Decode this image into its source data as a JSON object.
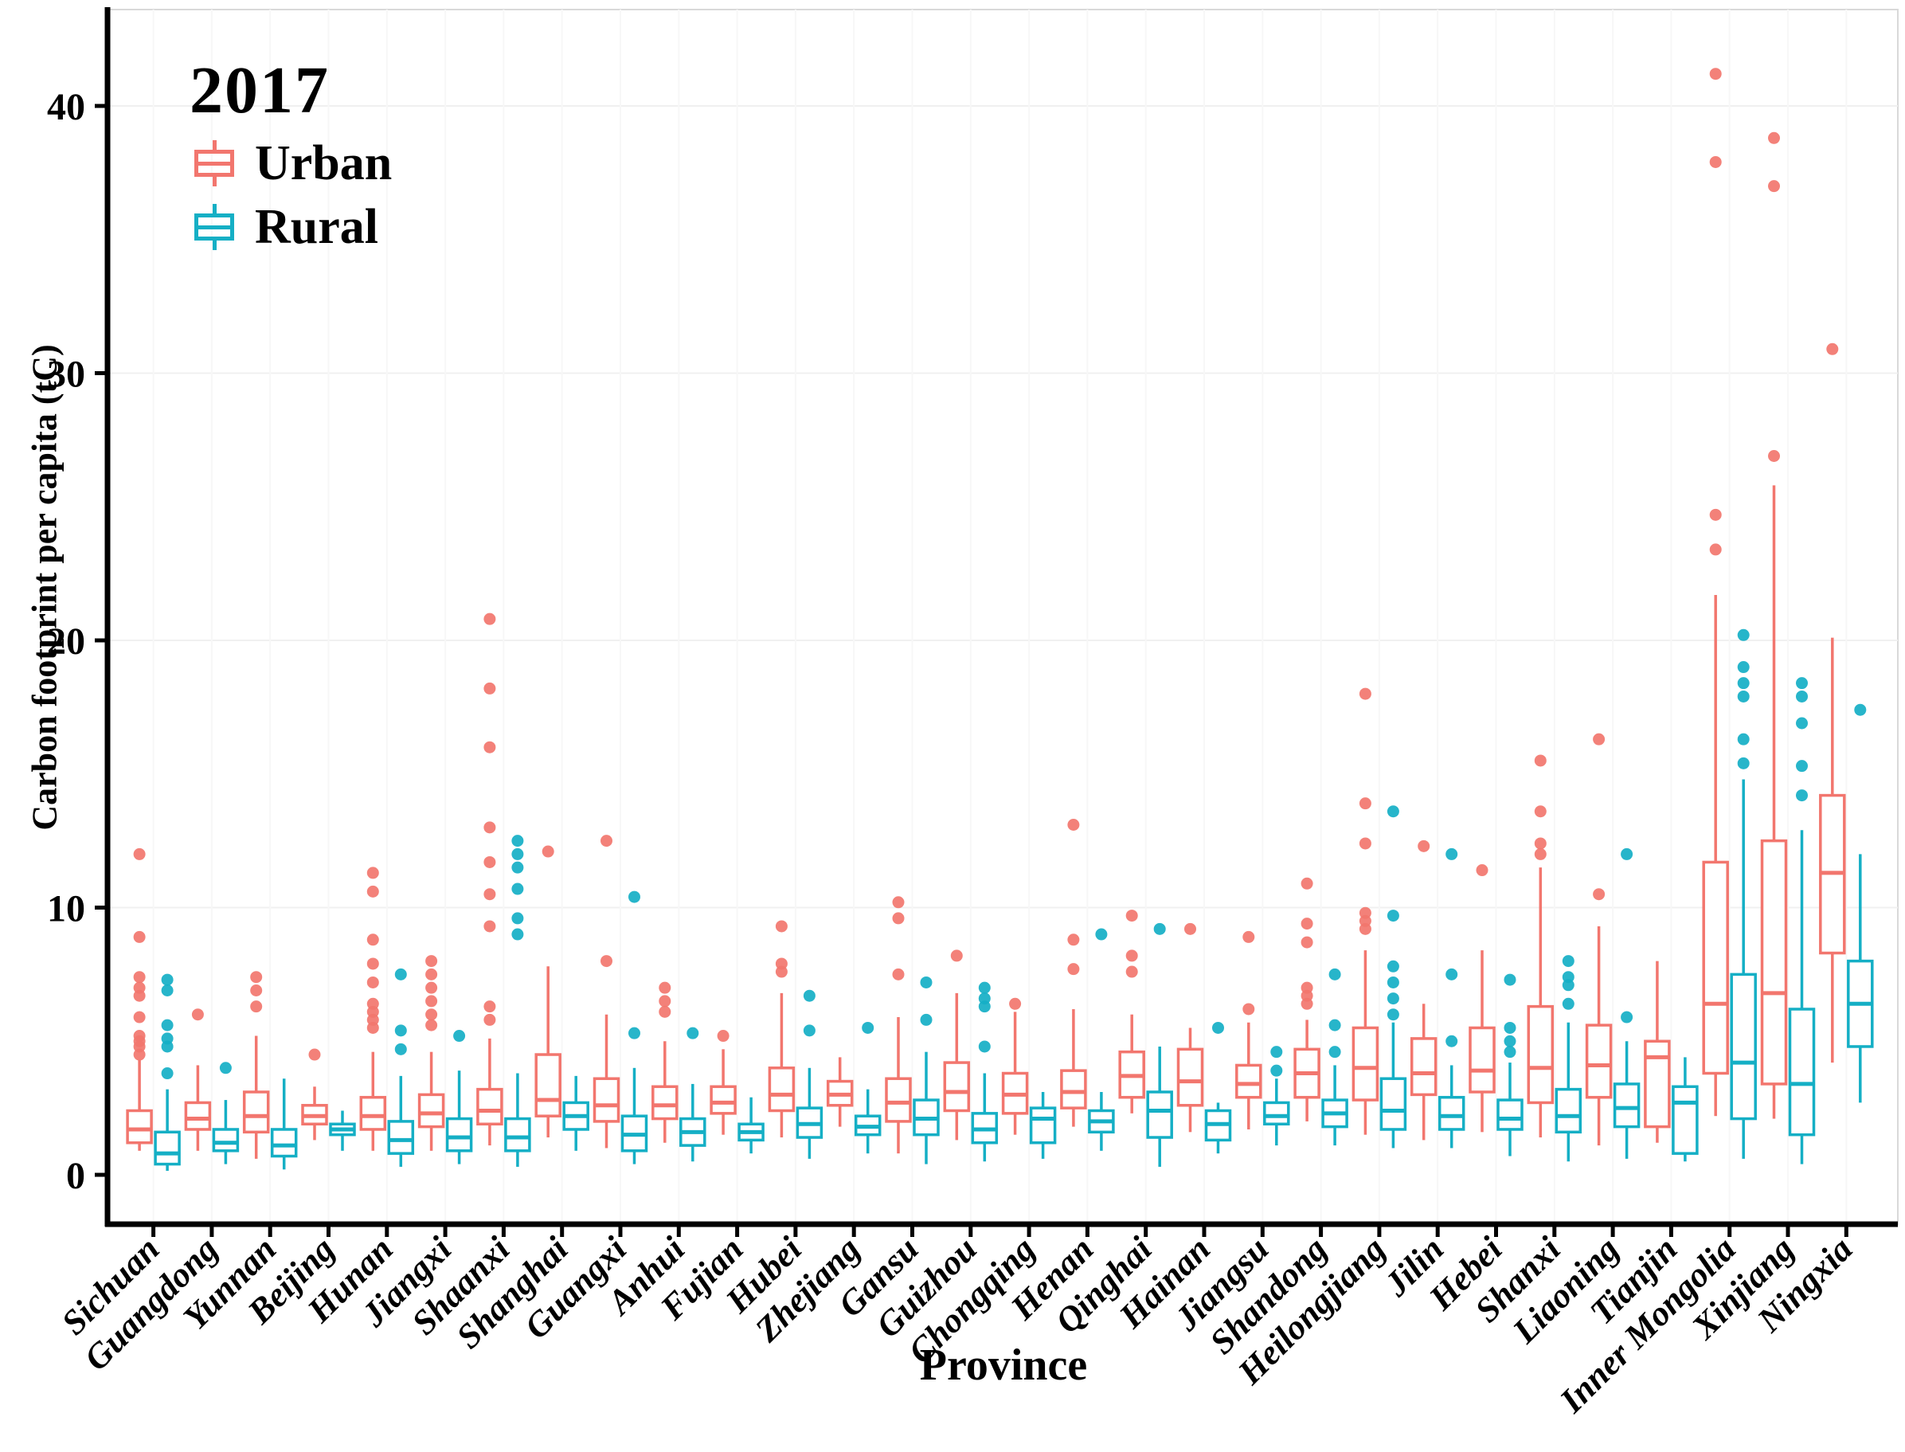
{
  "figure": {
    "legend_title": "2017",
    "y_axis_title": "Carbon footprint per capita  (tC)",
    "x_axis_title": "Province"
  },
  "chart_data": {
    "type": "grouped_boxplot",
    "title": "2017",
    "xlabel": "Province",
    "ylabel": "Carbon footprint per capita  (tC)",
    "ylim": [
      0,
      43
    ],
    "yticks": [
      0,
      10,
      20,
      30,
      40
    ],
    "grid": "very faint horizontal and vertical gridlines, white panel, black left/bottom axes",
    "legend_position": "top-left inside plot",
    "series": [
      {
        "name": "Urban",
        "color": "#F2766E"
      },
      {
        "name": "Rural",
        "color": "#15AFC5"
      }
    ],
    "categories": [
      "Sichuan",
      "Guangdong",
      "Yunnan",
      "Beijing",
      "Hunan",
      "Jiangxi",
      "Shaanxi",
      "Shanghai",
      "Guangxi",
      "Anhui",
      "Fujian",
      "Hubei",
      "Zhejiang",
      "Gansu",
      "Guizhou",
      "Chongqing",
      "Henan",
      "Qinghai",
      "Hainan",
      "Jiangsu",
      "Shandong",
      "Heilongjiang",
      "Jilin",
      "Hebei",
      "Shanxi",
      "Liaoning",
      "Tianjin",
      "Inner Mongolia",
      "Xinjiang",
      "Ningxia"
    ],
    "provinces": [
      {
        "name": "Sichuan",
        "urban": {
          "whislo": 0.9,
          "q1": 1.2,
          "med": 1.7,
          "q3": 2.4,
          "whishi": 4.3,
          "fliers": [
            4.5,
            4.8,
            5.0,
            5.2,
            5.9,
            6.7,
            7.0,
            7.4,
            8.9,
            12.0
          ]
        },
        "rural": {
          "whislo": 0.15,
          "q1": 0.4,
          "med": 0.8,
          "q3": 1.6,
          "whishi": 3.2,
          "fliers": [
            3.8,
            4.8,
            5.1,
            5.6,
            6.9,
            7.3
          ]
        }
      },
      {
        "name": "Guangdong",
        "urban": {
          "whislo": 0.9,
          "q1": 1.7,
          "med": 2.1,
          "q3": 2.7,
          "whishi": 4.1,
          "fliers": [
            6.0
          ]
        },
        "rural": {
          "whislo": 0.4,
          "q1": 0.9,
          "med": 1.2,
          "q3": 1.7,
          "whishi": 2.8,
          "fliers": [
            4.0
          ]
        }
      },
      {
        "name": "Yunnan",
        "urban": {
          "whislo": 0.6,
          "q1": 1.6,
          "med": 2.2,
          "q3": 3.1,
          "whishi": 5.2,
          "fliers": [
            6.3,
            6.9,
            7.4
          ]
        },
        "rural": {
          "whislo": 0.2,
          "q1": 0.7,
          "med": 1.1,
          "q3": 1.7,
          "whishi": 3.6,
          "fliers": []
        }
      },
      {
        "name": "Beijing",
        "urban": {
          "whislo": 1.3,
          "q1": 1.9,
          "med": 2.2,
          "q3": 2.6,
          "whishi": 3.3,
          "fliers": [
            4.5
          ]
        },
        "rural": {
          "whislo": 0.9,
          "q1": 1.5,
          "med": 1.7,
          "q3": 1.9,
          "whishi": 2.4,
          "fliers": []
        }
      },
      {
        "name": "Hunan",
        "urban": {
          "whislo": 0.9,
          "q1": 1.7,
          "med": 2.2,
          "q3": 2.9,
          "whishi": 4.6,
          "fliers": [
            5.5,
            5.8,
            6.1,
            6.4,
            7.2,
            7.9,
            8.8,
            10.6,
            11.3
          ]
        },
        "rural": {
          "whislo": 0.3,
          "q1": 0.8,
          "med": 1.3,
          "q3": 2.0,
          "whishi": 3.7,
          "fliers": [
            4.7,
            5.4,
            7.5
          ]
        }
      },
      {
        "name": "Jiangxi",
        "urban": {
          "whislo": 0.9,
          "q1": 1.8,
          "med": 2.3,
          "q3": 3.0,
          "whishi": 4.6,
          "fliers": [
            5.6,
            6.0,
            6.5,
            7.0,
            7.5,
            8.0
          ]
        },
        "rural": {
          "whislo": 0.4,
          "q1": 0.9,
          "med": 1.4,
          "q3": 2.1,
          "whishi": 3.9,
          "fliers": [
            5.2
          ]
        }
      },
      {
        "name": "Shaanxi",
        "urban": {
          "whislo": 1.1,
          "q1": 1.9,
          "med": 2.4,
          "q3": 3.2,
          "whishi": 5.1,
          "fliers": [
            5.8,
            6.3,
            9.3,
            10.5,
            11.7,
            13.0,
            16.0,
            18.2,
            20.8
          ]
        },
        "rural": {
          "whislo": 0.3,
          "q1": 0.9,
          "med": 1.4,
          "q3": 2.1,
          "whishi": 3.8,
          "fliers": [
            9.0,
            9.6,
            10.7,
            11.5,
            12.0,
            12.5
          ]
        }
      },
      {
        "name": "Shanghai",
        "urban": {
          "whislo": 1.4,
          "q1": 2.2,
          "med": 2.8,
          "q3": 4.5,
          "whishi": 7.8,
          "fliers": [
            12.1
          ]
        },
        "rural": {
          "whislo": 0.9,
          "q1": 1.7,
          "med": 2.2,
          "q3": 2.7,
          "whishi": 3.7,
          "fliers": []
        }
      },
      {
        "name": "Guangxi",
        "urban": {
          "whislo": 1.0,
          "q1": 2.0,
          "med": 2.6,
          "q3": 3.6,
          "whishi": 6.0,
          "fliers": [
            8.0,
            12.5
          ]
        },
        "rural": {
          "whislo": 0.4,
          "q1": 0.9,
          "med": 1.5,
          "q3": 2.2,
          "whishi": 4.0,
          "fliers": [
            5.3,
            10.4
          ]
        }
      },
      {
        "name": "Anhui",
        "urban": {
          "whislo": 1.2,
          "q1": 2.1,
          "med": 2.6,
          "q3": 3.3,
          "whishi": 5.0,
          "fliers": [
            6.1,
            6.5,
            7.0
          ]
        },
        "rural": {
          "whislo": 0.5,
          "q1": 1.1,
          "med": 1.6,
          "q3": 2.1,
          "whishi": 3.4,
          "fliers": [
            5.3
          ]
        }
      },
      {
        "name": "Fujian",
        "urban": {
          "whislo": 1.5,
          "q1": 2.3,
          "med": 2.7,
          "q3": 3.3,
          "whishi": 4.7,
          "fliers": [
            5.2
          ]
        },
        "rural": {
          "whislo": 0.8,
          "q1": 1.3,
          "med": 1.6,
          "q3": 1.9,
          "whishi": 2.9,
          "fliers": []
        }
      },
      {
        "name": "Hubei",
        "urban": {
          "whislo": 1.4,
          "q1": 2.4,
          "med": 3.0,
          "q3": 4.0,
          "whishi": 6.8,
          "fliers": [
            7.6,
            7.9,
            9.3
          ]
        },
        "rural": {
          "whislo": 0.6,
          "q1": 1.4,
          "med": 1.9,
          "q3": 2.5,
          "whishi": 4.0,
          "fliers": [
            5.4,
            6.7
          ]
        }
      },
      {
        "name": "Zhejiang",
        "urban": {
          "whislo": 1.8,
          "q1": 2.6,
          "med": 3.0,
          "q3": 3.5,
          "whishi": 4.4,
          "fliers": []
        },
        "rural": {
          "whislo": 0.8,
          "q1": 1.5,
          "med": 1.8,
          "q3": 2.2,
          "whishi": 3.2,
          "fliers": [
            5.5
          ]
        }
      },
      {
        "name": "Gansu",
        "urban": {
          "whislo": 0.8,
          "q1": 2.0,
          "med": 2.7,
          "q3": 3.6,
          "whishi": 5.9,
          "fliers": [
            7.5,
            9.6,
            10.2
          ]
        },
        "rural": {
          "whislo": 0.4,
          "q1": 1.5,
          "med": 2.1,
          "q3": 2.8,
          "whishi": 4.6,
          "fliers": [
            5.8,
            7.2
          ]
        }
      },
      {
        "name": "Guizhou",
        "urban": {
          "whislo": 1.3,
          "q1": 2.4,
          "med": 3.1,
          "q3": 4.2,
          "whishi": 6.8,
          "fliers": [
            8.2
          ]
        },
        "rural": {
          "whislo": 0.5,
          "q1": 1.2,
          "med": 1.7,
          "q3": 2.3,
          "whishi": 3.8,
          "fliers": [
            4.8,
            6.3,
            6.6,
            7.0
          ]
        }
      },
      {
        "name": "Chongqing",
        "urban": {
          "whislo": 1.5,
          "q1": 2.3,
          "med": 3.0,
          "q3": 3.8,
          "whishi": 6.1,
          "fliers": [
            6.4
          ]
        },
        "rural": {
          "whislo": 0.6,
          "q1": 1.2,
          "med": 2.1,
          "q3": 2.5,
          "whishi": 3.1,
          "fliers": []
        }
      },
      {
        "name": "Henan",
        "urban": {
          "whislo": 1.8,
          "q1": 2.5,
          "med": 3.1,
          "q3": 3.9,
          "whishi": 6.2,
          "fliers": [
            7.7,
            8.8,
            13.1
          ]
        },
        "rural": {
          "whislo": 0.9,
          "q1": 1.6,
          "med": 2.0,
          "q3": 2.4,
          "whishi": 3.1,
          "fliers": [
            9.0
          ]
        }
      },
      {
        "name": "Qinghai",
        "urban": {
          "whislo": 2.3,
          "q1": 2.9,
          "med": 3.7,
          "q3": 4.6,
          "whishi": 6.0,
          "fliers": [
            7.6,
            8.2,
            9.7
          ]
        },
        "rural": {
          "whislo": 0.3,
          "q1": 1.4,
          "med": 2.4,
          "q3": 3.1,
          "whishi": 4.8,
          "fliers": [
            9.2
          ]
        }
      },
      {
        "name": "Hainan",
        "urban": {
          "whislo": 1.6,
          "q1": 2.6,
          "med": 3.5,
          "q3": 4.7,
          "whishi": 5.5,
          "fliers": [
            9.2
          ]
        },
        "rural": {
          "whislo": 0.8,
          "q1": 1.3,
          "med": 1.9,
          "q3": 2.4,
          "whishi": 2.7,
          "fliers": [
            5.5
          ]
        }
      },
      {
        "name": "Jiangsu",
        "urban": {
          "whislo": 1.7,
          "q1": 2.9,
          "med": 3.4,
          "q3": 4.1,
          "whishi": 5.7,
          "fliers": [
            6.2,
            8.9
          ]
        },
        "rural": {
          "whislo": 1.1,
          "q1": 1.9,
          "med": 2.2,
          "q3": 2.7,
          "whishi": 3.6,
          "fliers": [
            3.9,
            4.6
          ]
        }
      },
      {
        "name": "Shandong",
        "urban": {
          "whislo": 2.0,
          "q1": 2.9,
          "med": 3.8,
          "q3": 4.7,
          "whishi": 5.8,
          "fliers": [
            6.4,
            6.7,
            7.0,
            8.7,
            9.4,
            10.9
          ]
        },
        "rural": {
          "whislo": 1.1,
          "q1": 1.8,
          "med": 2.3,
          "q3": 2.8,
          "whishi": 4.1,
          "fliers": [
            4.6,
            5.6,
            7.5
          ]
        }
      },
      {
        "name": "Heilongjiang",
        "urban": {
          "whislo": 1.5,
          "q1": 2.8,
          "med": 4.0,
          "q3": 5.5,
          "whishi": 8.4,
          "fliers": [
            9.2,
            9.5,
            9.8,
            12.4,
            13.9,
            18.0
          ]
        },
        "rural": {
          "whislo": 1.0,
          "q1": 1.7,
          "med": 2.4,
          "q3": 3.6,
          "whishi": 5.7,
          "fliers": [
            6.0,
            6.6,
            7.2,
            7.8,
            9.7,
            13.6
          ]
        }
      },
      {
        "name": "Jilin",
        "urban": {
          "whislo": 1.3,
          "q1": 3.0,
          "med": 3.8,
          "q3": 5.1,
          "whishi": 6.4,
          "fliers": [
            12.3
          ]
        },
        "rural": {
          "whislo": 1.0,
          "q1": 1.7,
          "med": 2.2,
          "q3": 2.9,
          "whishi": 4.1,
          "fliers": [
            5.0,
            7.5,
            12.0
          ]
        }
      },
      {
        "name": "Hebei",
        "urban": {
          "whislo": 1.6,
          "q1": 3.1,
          "med": 3.9,
          "q3": 5.5,
          "whishi": 8.4,
          "fliers": [
            11.4
          ]
        },
        "rural": {
          "whislo": 0.7,
          "q1": 1.7,
          "med": 2.1,
          "q3": 2.8,
          "whishi": 4.2,
          "fliers": [
            4.6,
            5.0,
            5.5,
            7.3
          ]
        }
      },
      {
        "name": "Shanxi",
        "urban": {
          "whislo": 1.4,
          "q1": 2.7,
          "med": 4.0,
          "q3": 6.3,
          "whishi": 11.5,
          "fliers": [
            12.0,
            12.4,
            13.6,
            15.5
          ]
        },
        "rural": {
          "whislo": 0.5,
          "q1": 1.6,
          "med": 2.2,
          "q3": 3.2,
          "whishi": 5.7,
          "fliers": [
            6.4,
            7.1,
            7.4,
            8.0
          ]
        }
      },
      {
        "name": "Liaoning",
        "urban": {
          "whislo": 1.1,
          "q1": 2.9,
          "med": 4.1,
          "q3": 5.6,
          "whishi": 9.3,
          "fliers": [
            10.5,
            16.3
          ]
        },
        "rural": {
          "whislo": 0.6,
          "q1": 1.8,
          "med": 2.5,
          "q3": 3.4,
          "whishi": 5.0,
          "fliers": [
            5.9,
            12.0
          ]
        }
      },
      {
        "name": "Tianjin",
        "urban": {
          "whislo": 1.2,
          "q1": 1.8,
          "med": 4.4,
          "q3": 5.0,
          "whishi": 8.0,
          "fliers": []
        },
        "rural": {
          "whislo": 0.5,
          "q1": 0.8,
          "med": 2.7,
          "q3": 3.3,
          "whishi": 4.4,
          "fliers": []
        }
      },
      {
        "name": "Inner Mongolia",
        "urban": {
          "whislo": 2.2,
          "q1": 3.8,
          "med": 6.4,
          "q3": 11.7,
          "whishi": 21.7,
          "fliers": [
            23.4,
            24.7,
            37.9,
            41.2
          ]
        },
        "rural": {
          "whislo": 0.6,
          "q1": 2.1,
          "med": 4.2,
          "q3": 7.5,
          "whishi": 14.8,
          "fliers": [
            15.4,
            16.3,
            17.9,
            18.4,
            19.0,
            20.2
          ]
        }
      },
      {
        "name": "Xinjiang",
        "urban": {
          "whislo": 2.1,
          "q1": 3.4,
          "med": 6.8,
          "q3": 12.5,
          "whishi": 25.8,
          "fliers": [
            26.9,
            37.0,
            38.8
          ]
        },
        "rural": {
          "whislo": 0.4,
          "q1": 1.5,
          "med": 3.4,
          "q3": 6.2,
          "whishi": 12.9,
          "fliers": [
            14.2,
            15.3,
            16.9,
            17.9,
            18.4
          ]
        }
      },
      {
        "name": "Ningxia",
        "urban": {
          "whislo": 4.2,
          "q1": 8.3,
          "med": 11.3,
          "q3": 14.2,
          "whishi": 20.1,
          "fliers": [
            30.9
          ]
        },
        "rural": {
          "whislo": 2.7,
          "q1": 4.8,
          "med": 6.4,
          "q3": 8.0,
          "whishi": 12.0,
          "fliers": [
            17.4
          ]
        }
      }
    ]
  }
}
